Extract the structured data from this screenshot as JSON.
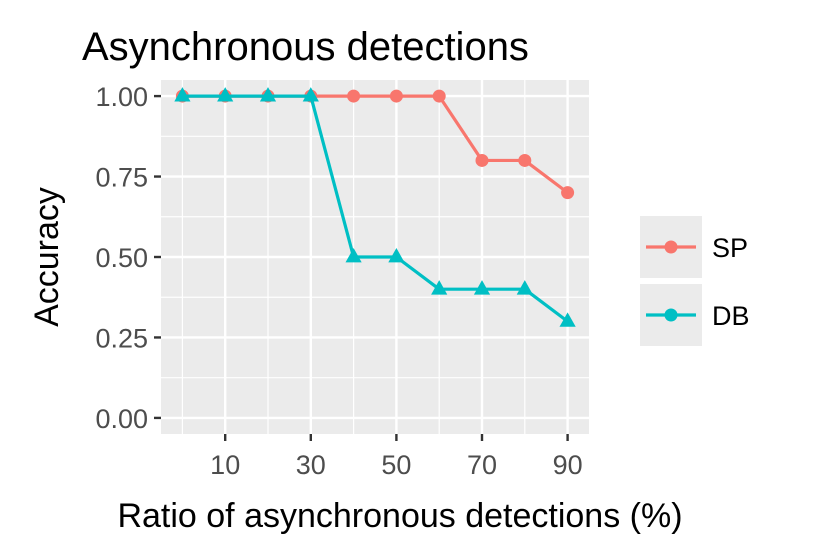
{
  "chart_data": {
    "type": "line",
    "title": "Asynchronous detections",
    "xlabel": "Ratio of asynchronous detections (%)",
    "ylabel": "Accuracy",
    "x": [
      0,
      10,
      20,
      30,
      40,
      50,
      60,
      70,
      80,
      90
    ],
    "xlim": [
      -5,
      95
    ],
    "ylim": [
      -0.05,
      1.05
    ],
    "xticks": [
      10,
      30,
      50,
      70,
      90
    ],
    "yticks": [
      0,
      0.25,
      0.5,
      0.75,
      1
    ],
    "ytick_labels": [
      "0.00",
      "0.25",
      "0.50",
      "0.75",
      "1.00"
    ],
    "grid": true,
    "legend_position": "right",
    "series": [
      {
        "name": "SP",
        "color": "#F8766D",
        "marker": "circle",
        "values": [
          1.0,
          1.0,
          1.0,
          1.0,
          1.0,
          1.0,
          1.0,
          0.8,
          0.8,
          0.7
        ]
      },
      {
        "name": "DB",
        "color": "#00BFC4",
        "marker": "triangle",
        "values": [
          1.0,
          1.0,
          1.0,
          1.0,
          0.5,
          0.5,
          0.4,
          0.4,
          0.4,
          0.3
        ]
      }
    ]
  }
}
